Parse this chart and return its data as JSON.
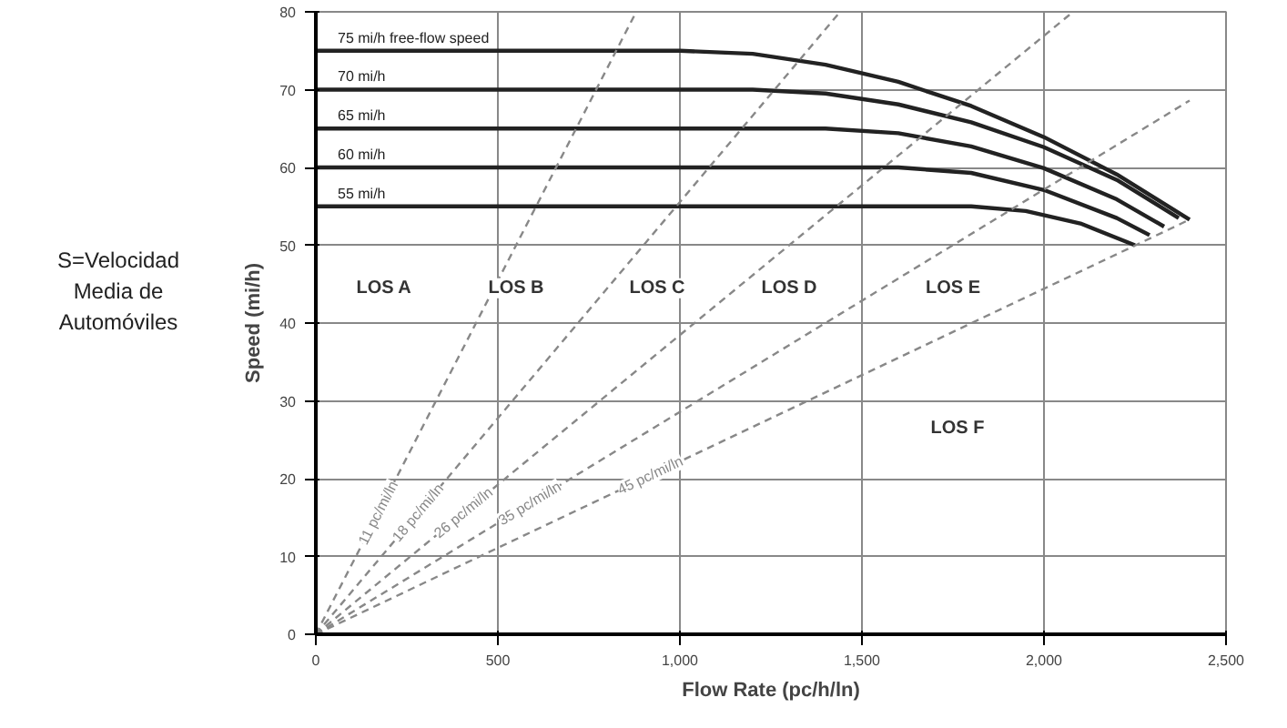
{
  "chart_data": {
    "type": "line",
    "xlabel": "Flow Rate (pc/h/ln)",
    "ylabel": "Speed (mi/h)",
    "xlim": [
      0,
      2500
    ],
    "ylim": [
      0,
      80
    ],
    "xticks": [
      0,
      500,
      {
        "value": 1000,
        "label": "1,000"
      },
      {
        "value": 1500,
        "label": "1,500"
      },
      {
        "value": 2000,
        "label": "2,000"
      },
      {
        "value": 2500,
        "label": "2,500"
      }
    ],
    "yticks": [
      0,
      10,
      20,
      30,
      40,
      50,
      60,
      70,
      80
    ],
    "grid": true,
    "marker": "none",
    "series": [
      {
        "name": "75 mi/h free-flow speed",
        "color": "#222222",
        "line_style": "solid",
        "x": [
          0,
          1000,
          1200,
          1400,
          1600,
          1800,
          2000,
          2200,
          2400
        ],
        "values": [
          75,
          75,
          74.6,
          73.2,
          71.0,
          67.9,
          63.9,
          59.1,
          53.3
        ]
      },
      {
        "name": "70 mi/h",
        "color": "#222222",
        "line_style": "solid",
        "x": [
          0,
          1200,
          1400,
          1600,
          1800,
          2000,
          2200,
          2370
        ],
        "values": [
          70,
          70,
          69.5,
          68.1,
          65.8,
          62.6,
          58.4,
          53.5
        ]
      },
      {
        "name": "65 mi/h",
        "color": "#222222",
        "line_style": "solid",
        "x": [
          0,
          1400,
          1600,
          1800,
          2000,
          2200,
          2330
        ],
        "values": [
          65,
          65,
          64.4,
          62.7,
          59.9,
          55.9,
          52.4
        ]
      },
      {
        "name": "60 mi/h",
        "color": "#222222",
        "line_style": "solid",
        "x": [
          0,
          1600,
          1800,
          2000,
          2200,
          2290
        ],
        "values": [
          60,
          60,
          59.3,
          57.1,
          53.5,
          51.3
        ]
      },
      {
        "name": "55 mi/h",
        "color": "#222222",
        "line_style": "solid",
        "x": [
          0,
          1800,
          1950,
          2100,
          2250
        ],
        "values": [
          55,
          55,
          54.4,
          52.8,
          50.0
        ]
      },
      {
        "name": "11 pc/mi/ln",
        "color": "#888888",
        "line_style": "dashed",
        "x": [
          0,
          880
        ],
        "values": [
          0,
          80
        ]
      },
      {
        "name": "18 pc/mi/ln",
        "color": "#888888",
        "line_style": "dashed",
        "x": [
          0,
          1440
        ],
        "values": [
          0,
          80
        ]
      },
      {
        "name": "26 pc/mi/ln",
        "color": "#888888",
        "line_style": "dashed",
        "x": [
          0,
          2080
        ],
        "values": [
          0,
          80
        ]
      },
      {
        "name": "35 pc/mi/ln",
        "color": "#888888",
        "line_style": "dashed",
        "x": [
          0,
          2400
        ],
        "values": [
          0,
          68.6
        ]
      },
      {
        "name": "45 pc/mi/ln",
        "color": "#888888",
        "line_style": "dashed",
        "x": [
          0,
          2400
        ],
        "values": [
          0,
          53.3
        ]
      }
    ],
    "annotations": [
      "LOS A",
      "LOS B",
      "LOS C",
      "LOS D",
      "LOS E",
      "LOS F",
      "S=Velocidad\nMedia de\nAutomóviles"
    ]
  }
}
